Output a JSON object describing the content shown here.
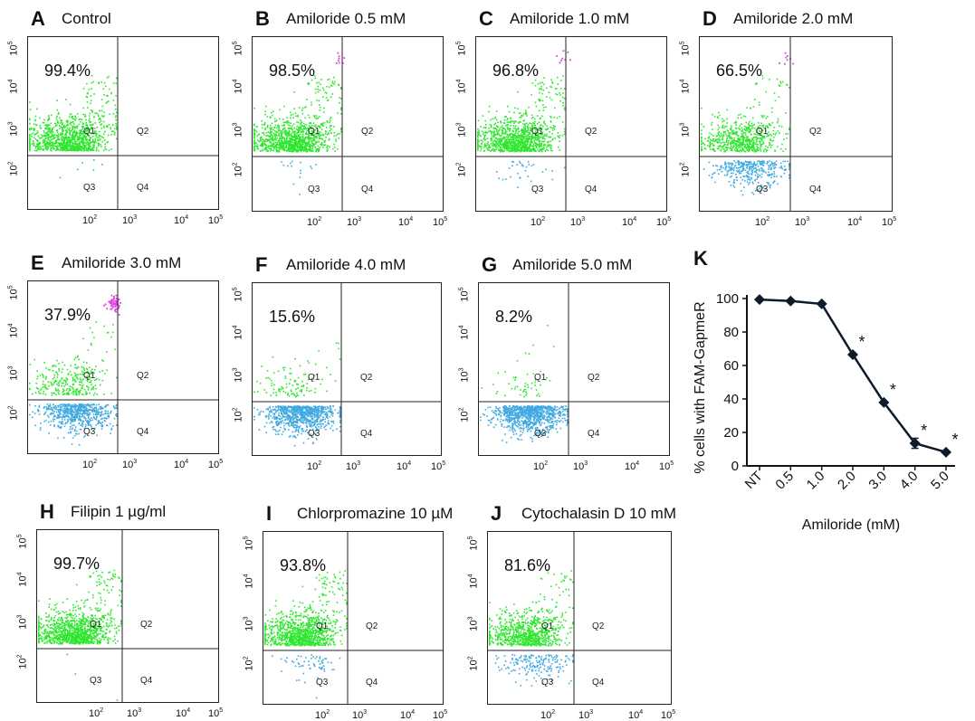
{
  "flow_panels": [
    {
      "letter": "A",
      "title": "Control",
      "percent": "99.4%",
      "q1_fraction": 0.994,
      "pink": false
    },
    {
      "letter": "B",
      "title": "Amiloride 0.5 mM",
      "percent": "98.5%",
      "q1_fraction": 0.985,
      "pink": true
    },
    {
      "letter": "C",
      "title": "Amiloride 1.0 mM",
      "percent": "96.8%",
      "q1_fraction": 0.968,
      "pink": true
    },
    {
      "letter": "D",
      "title": "Amiloride 2.0 mM",
      "percent": "66.5%",
      "q1_fraction": 0.665,
      "pink": true
    },
    {
      "letter": "E",
      "title": "Amiloride 3.0 mM",
      "percent": "37.9%",
      "q1_fraction": 0.379,
      "pink": true
    },
    {
      "letter": "F",
      "title": "Amiloride 4.0 mM",
      "percent": "15.6%",
      "q1_fraction": 0.156,
      "pink": false
    },
    {
      "letter": "G",
      "title": "Amiloride 5.0 mM",
      "percent": "8.2%",
      "q1_fraction": 0.082,
      "pink": false
    },
    {
      "letter": "H",
      "title": "Filipin 1 µg/ml",
      "percent": "99.7%",
      "q1_fraction": 0.997,
      "pink": false
    },
    {
      "letter": "I",
      "title": "Chlorpromazine 10 µM",
      "percent": "93.8%",
      "q1_fraction": 0.938,
      "pink": false
    },
    {
      "letter": "J",
      "title": "Cytochalasin D 10 mM",
      "percent": "81.6%",
      "q1_fraction": 0.816,
      "pink": false
    }
  ],
  "quadrant_labels": [
    "Q1",
    "Q2",
    "Q3",
    "Q4"
  ],
  "axis_ticks": {
    "base": "10",
    "y_exponents": [
      "2",
      "3",
      "4",
      "5"
    ],
    "x_exponents": [
      "2",
      "3",
      "4",
      "5"
    ]
  },
  "colors": {
    "q1_events": "#2ee62e",
    "q3_events": "#3fa9e0",
    "q2_events": "#e040e0",
    "line": "#0d1b2a"
  },
  "chart_data": {
    "type": "line",
    "title": "",
    "panel_letter": "K",
    "xlabel": "Amiloride (mM)",
    "ylabel": "% cells with FAM-GapmeR",
    "categories": [
      "NT",
      "0.5",
      "1.0",
      "2.0",
      "3.0",
      "4.0",
      "5.0"
    ],
    "values": [
      99.4,
      98.5,
      96.8,
      66.5,
      37.9,
      13.5,
      8.2
    ],
    "errors": [
      0,
      0,
      0,
      0,
      0,
      3,
      0
    ],
    "significant": [
      false,
      false,
      false,
      true,
      true,
      true,
      true
    ],
    "significance_marker": "*",
    "ylim": [
      0,
      100
    ],
    "yticks": [
      "0",
      "20",
      "40",
      "60",
      "80",
      "100"
    ],
    "grid": false
  }
}
